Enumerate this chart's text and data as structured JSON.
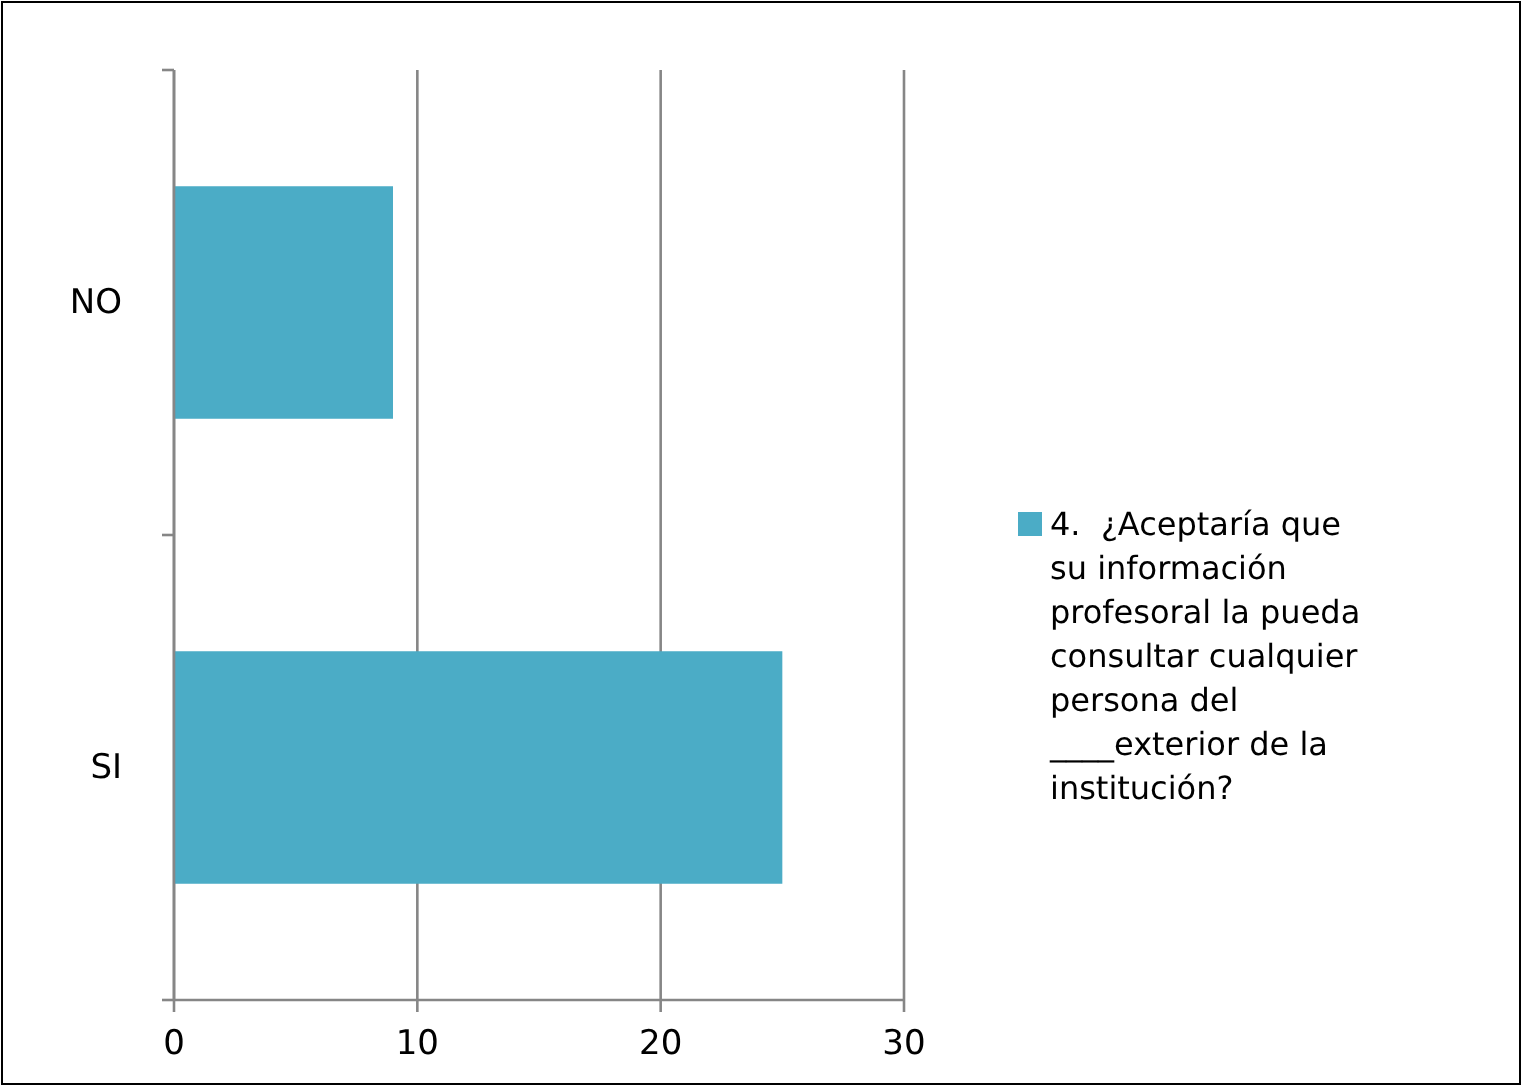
{
  "chart_data": {
    "type": "bar",
    "orientation": "horizontal",
    "categories": [
      "NO",
      "SI"
    ],
    "series": [
      {
        "name": "4.  ¿Aceptaría que su información profesoral la pueda consultar cualquier persona del ____exterior de la institución?",
        "color": "#4bacc6",
        "values": [
          9,
          25
        ]
      }
    ],
    "xlim": [
      0,
      30
    ],
    "xticks": [
      0,
      10,
      20,
      30
    ],
    "grid": "x",
    "legend": "right"
  }
}
